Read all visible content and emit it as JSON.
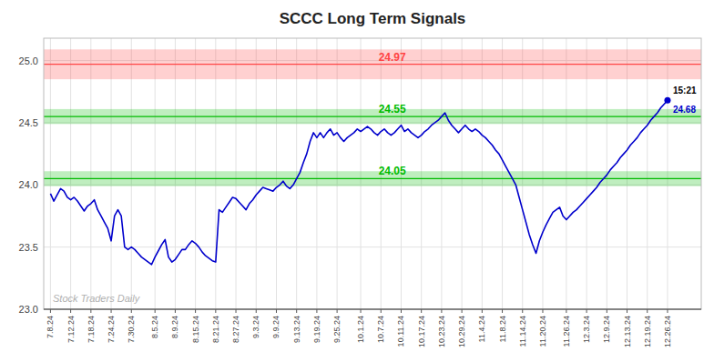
{
  "chart_data": {
    "type": "line",
    "title": "SCCC Long Term Signals",
    "color": "#0000cc",
    "grid": true,
    "ylim": [
      23.0,
      25.18
    ],
    "yticks": [
      {
        "value": 23.0,
        "label": "23.0"
      },
      23.5,
      {
        "value": 24.0,
        "label": "24.0"
      },
      24.5,
      {
        "value": 25.0,
        "label": "25.0"
      }
    ],
    "categories": [
      "7.8.24",
      null,
      null,
      null,
      null,
      null,
      "7.12.24",
      null,
      null,
      null,
      null,
      null,
      "7.18.24",
      null,
      null,
      null,
      null,
      null,
      "7.24.24",
      null,
      null,
      null,
      null,
      null,
      "7.30.24",
      null,
      null,
      null,
      null,
      null,
      null,
      "8.5.24",
      null,
      null,
      null,
      null,
      null,
      "8.9.24",
      null,
      null,
      null,
      null,
      null,
      "8.15.24",
      null,
      null,
      null,
      null,
      null,
      "8.21.24",
      null,
      null,
      null,
      null,
      null,
      "8.27.24",
      null,
      null,
      null,
      null,
      null,
      "9.3.24",
      null,
      null,
      null,
      null,
      null,
      "9.9.24",
      null,
      null,
      null,
      null,
      null,
      "9.13.24",
      null,
      null,
      null,
      null,
      null,
      "9.19.24",
      null,
      null,
      null,
      null,
      null,
      "9.25.24",
      null,
      null,
      null,
      null,
      null,
      null,
      "10.1.24",
      null,
      null,
      null,
      null,
      null,
      "10.7.24",
      null,
      null,
      null,
      null,
      null,
      "10.11.24",
      null,
      null,
      null,
      null,
      null,
      "10.17.24",
      null,
      null,
      null,
      null,
      null,
      "10.23.24",
      null,
      null,
      null,
      null,
      null,
      "10.29.24",
      null,
      null,
      null,
      null,
      null,
      "11.4.24",
      null,
      null,
      null,
      null,
      null,
      "11.8.24",
      null,
      null,
      null,
      null,
      null,
      "11.14.24",
      null,
      null,
      null,
      null,
      null,
      "11.20.24",
      null,
      null,
      null,
      null,
      null,
      null,
      "11.26.24",
      null,
      null,
      null,
      null,
      null,
      "12.3.24",
      null,
      null,
      null,
      null,
      null,
      "12.9.24",
      null,
      null,
      null,
      null,
      null,
      "12.13.24",
      null,
      null,
      null,
      null,
      null,
      "12.19.24",
      null,
      null,
      null,
      null,
      null,
      "12.26.24"
    ],
    "values": [
      23.93,
      23.87,
      23.92,
      23.97,
      23.95,
      23.9,
      23.88,
      23.9,
      23.87,
      23.83,
      23.79,
      23.83,
      23.85,
      23.88,
      23.8,
      23.75,
      23.7,
      23.65,
      23.55,
      23.75,
      23.8,
      23.75,
      23.5,
      23.48,
      23.5,
      23.48,
      23.45,
      23.42,
      23.4,
      23.38,
      23.36,
      23.42,
      23.47,
      23.52,
      23.56,
      23.42,
      23.38,
      23.4,
      23.44,
      23.48,
      23.48,
      23.52,
      23.55,
      23.53,
      23.5,
      23.46,
      23.43,
      23.41,
      23.39,
      23.38,
      23.8,
      23.78,
      23.82,
      23.86,
      23.9,
      23.89,
      23.86,
      23.83,
      23.8,
      23.85,
      23.88,
      23.92,
      23.95,
      23.98,
      23.97,
      23.96,
      23.95,
      23.98,
      24.0,
      24.03,
      23.99,
      23.97,
      24.0,
      24.05,
      24.1,
      24.18,
      24.25,
      24.35,
      24.42,
      24.38,
      24.42,
      24.38,
      24.42,
      24.45,
      24.4,
      24.42,
      24.38,
      24.35,
      24.38,
      24.4,
      24.42,
      24.45,
      24.43,
      24.45,
      24.47,
      24.45,
      24.42,
      24.4,
      24.43,
      24.45,
      24.42,
      24.4,
      24.42,
      24.45,
      24.48,
      24.43,
      24.45,
      24.42,
      24.4,
      24.38,
      24.4,
      24.43,
      24.45,
      24.48,
      24.5,
      24.52,
      24.55,
      24.58,
      24.52,
      24.48,
      24.45,
      24.42,
      24.45,
      24.48,
      24.45,
      24.43,
      24.45,
      24.43,
      24.4,
      24.38,
      24.35,
      24.32,
      24.28,
      24.25,
      24.2,
      24.15,
      24.1,
      24.05,
      24.0,
      23.9,
      23.8,
      23.7,
      23.6,
      23.52,
      23.45,
      23.55,
      23.62,
      23.68,
      23.73,
      23.78,
      23.8,
      23.82,
      23.75,
      23.72,
      23.75,
      23.78,
      23.8,
      23.83,
      23.86,
      23.89,
      23.92,
      23.95,
      23.98,
      24.02,
      24.05,
      24.08,
      24.12,
      24.15,
      24.18,
      24.22,
      24.25,
      24.28,
      24.32,
      24.35,
      24.38,
      24.42,
      24.45,
      24.48,
      24.52,
      24.55,
      24.58,
      24.62,
      24.65,
      24.68
    ],
    "levels": [
      {
        "value": 24.97,
        "color": "#ff4444",
        "band": [
          24.85,
          25.09
        ]
      },
      {
        "value": 24.55,
        "color": "#00bb00",
        "band": [
          24.49,
          24.61
        ]
      },
      {
        "value": 24.05,
        "color": "#00bb00",
        "band": [
          23.99,
          24.11
        ]
      }
    ],
    "last_time": "15:21",
    "last_price": 24.68,
    "watermark": "Stock Traders Daily"
  }
}
